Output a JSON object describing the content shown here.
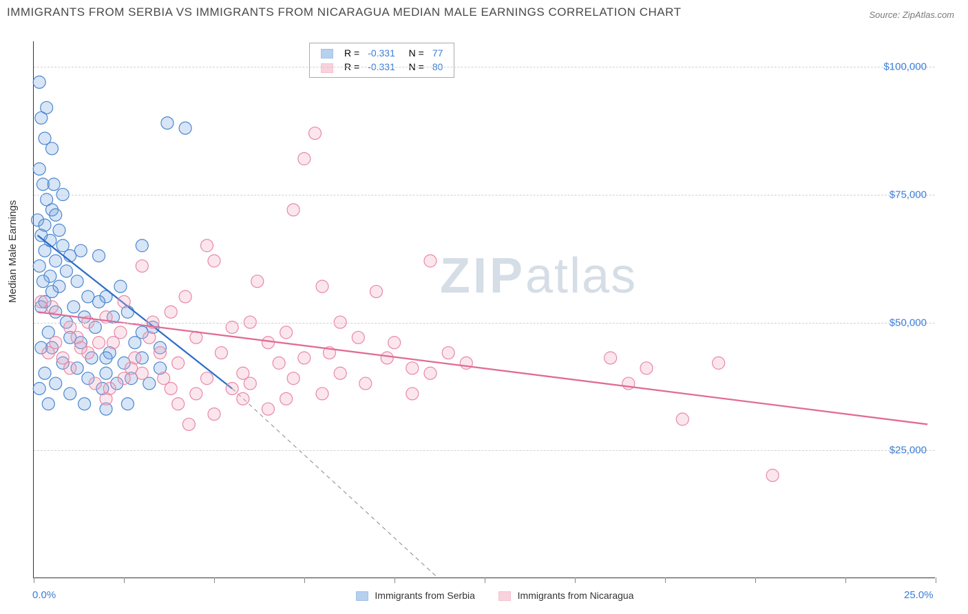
{
  "title": "IMMIGRANTS FROM SERBIA VS IMMIGRANTS FROM NICARAGUA MEDIAN MALE EARNINGS CORRELATION CHART",
  "source": "Source: ZipAtlas.com",
  "ylabel": "Median Male Earnings",
  "watermark_a": "ZIP",
  "watermark_b": "atlas",
  "chart": {
    "type": "scatter-correlation",
    "background_color": "#ffffff",
    "grid_color": "#d0d0d0",
    "axis_color": "#333333",
    "tick_label_color": "#3b7dd8",
    "tick_fontsize": 15,
    "label_fontsize": 15,
    "title_fontsize": 17,
    "xlim": [
      0,
      25
    ],
    "ylim": [
      0,
      105000
    ],
    "y_grid": [
      25000,
      50000,
      75000,
      100000
    ],
    "ytick_labels": [
      "$25,000",
      "$50,000",
      "$75,000",
      "$100,000"
    ],
    "x_ticks": [
      0,
      2.5,
      5,
      7.5,
      10,
      12.5,
      15,
      17.5,
      20,
      22.5,
      25
    ],
    "xtick_labels": {
      "0": "0.0%",
      "25": "25.0%"
    },
    "marker_radius": 9,
    "marker_stroke_width": 1.2,
    "fill_opacity": 0.28,
    "series": [
      {
        "name": "Immigrants from Serbia",
        "color": "#6fa3e0",
        "stroke": "#4a86d0",
        "line_color": "#2e6fc7",
        "line_width": 2.3,
        "trend": {
          "x1": 0.1,
          "y1": 67000,
          "x2": 5.5,
          "y2": 37000
        },
        "trend_dash": {
          "x1": 5.5,
          "y1": 37000,
          "x2": 11.2,
          "y2": 0
        },
        "R": "-0.331",
        "N": "77",
        "points": [
          [
            0.15,
            97000
          ],
          [
            0.35,
            92000
          ],
          [
            0.2,
            90000
          ],
          [
            0.55,
            77000
          ],
          [
            0.25,
            77000
          ],
          [
            0.35,
            74000
          ],
          [
            0.5,
            72000
          ],
          [
            0.6,
            71000
          ],
          [
            0.1,
            70000
          ],
          [
            0.3,
            69000
          ],
          [
            0.7,
            68000
          ],
          [
            0.2,
            67000
          ],
          [
            0.45,
            66000
          ],
          [
            0.8,
            65000
          ],
          [
            0.3,
            64000
          ],
          [
            1.3,
            64000
          ],
          [
            1.0,
            63000
          ],
          [
            0.6,
            62000
          ],
          [
            0.15,
            61000
          ],
          [
            0.9,
            60000
          ],
          [
            0.45,
            59000
          ],
          [
            0.25,
            58000
          ],
          [
            1.2,
            58000
          ],
          [
            0.7,
            57000
          ],
          [
            0.5,
            56000
          ],
          [
            1.5,
            55000
          ],
          [
            0.3,
            54000
          ],
          [
            2.0,
            55000
          ],
          [
            2.4,
            57000
          ],
          [
            1.8,
            54000
          ],
          [
            1.1,
            53000
          ],
          [
            0.2,
            53000
          ],
          [
            0.6,
            52000
          ],
          [
            1.4,
            51000
          ],
          [
            0.9,
            50000
          ],
          [
            2.2,
            51000
          ],
          [
            2.6,
            52000
          ],
          [
            1.7,
            49000
          ],
          [
            0.4,
            48000
          ],
          [
            1.0,
            47000
          ],
          [
            3.0,
            48000
          ],
          [
            3.3,
            49000
          ],
          [
            2.8,
            46000
          ],
          [
            1.3,
            46000
          ],
          [
            0.5,
            45000
          ],
          [
            2.1,
            44000
          ],
          [
            3.5,
            45000
          ],
          [
            1.6,
            43000
          ],
          [
            0.8,
            42000
          ],
          [
            2.5,
            42000
          ],
          [
            3.0,
            43000
          ],
          [
            1.2,
            41000
          ],
          [
            3.5,
            41000
          ],
          [
            2.0,
            40000
          ],
          [
            0.3,
            40000
          ],
          [
            1.5,
            39000
          ],
          [
            2.7,
            39000
          ],
          [
            0.6,
            38000
          ],
          [
            2.3,
            38000
          ],
          [
            3.2,
            38000
          ],
          [
            1.9,
            37000
          ],
          [
            0.15,
            37000
          ],
          [
            1.0,
            36000
          ],
          [
            2.6,
            34000
          ],
          [
            1.4,
            34000
          ],
          [
            0.4,
            34000
          ],
          [
            2.0,
            33000
          ],
          [
            3.7,
            89000
          ],
          [
            3.0,
            65000
          ],
          [
            1.8,
            63000
          ],
          [
            2.0,
            43000
          ],
          [
            4.2,
            88000
          ],
          [
            0.8,
            75000
          ],
          [
            0.15,
            80000
          ],
          [
            0.5,
            84000
          ],
          [
            0.3,
            86000
          ],
          [
            0.2,
            45000
          ]
        ]
      },
      {
        "name": "Immigrants from Nicaragua",
        "color": "#f2a7bd",
        "stroke": "#e887a5",
        "line_color": "#e26b95",
        "line_width": 2.3,
        "trend": {
          "x1": 0.1,
          "y1": 52000,
          "x2": 24.8,
          "y2": 30000
        },
        "R": "-0.331",
        "N": "80",
        "points": [
          [
            7.8,
            87000
          ],
          [
            7.5,
            82000
          ],
          [
            7.2,
            72000
          ],
          [
            4.8,
            65000
          ],
          [
            5.0,
            62000
          ],
          [
            11.0,
            62000
          ],
          [
            3.0,
            61000
          ],
          [
            6.2,
            58000
          ],
          [
            8.0,
            57000
          ],
          [
            9.5,
            56000
          ],
          [
            4.2,
            55000
          ],
          [
            2.5,
            54000
          ],
          [
            8.5,
            50000
          ],
          [
            6.0,
            50000
          ],
          [
            3.8,
            52000
          ],
          [
            2.0,
            51000
          ],
          [
            1.5,
            50000
          ],
          [
            1.0,
            49000
          ],
          [
            0.5,
            53000
          ],
          [
            0.2,
            54000
          ],
          [
            5.5,
            49000
          ],
          [
            7.0,
            48000
          ],
          [
            4.5,
            47000
          ],
          [
            3.2,
            47000
          ],
          [
            2.2,
            46000
          ],
          [
            1.8,
            46000
          ],
          [
            1.2,
            47000
          ],
          [
            6.5,
            46000
          ],
          [
            9.0,
            47000
          ],
          [
            10.0,
            46000
          ],
          [
            8.2,
            44000
          ],
          [
            11.5,
            44000
          ],
          [
            5.2,
            44000
          ],
          [
            3.5,
            44000
          ],
          [
            2.8,
            43000
          ],
          [
            7.5,
            43000
          ],
          [
            9.8,
            43000
          ],
          [
            4.0,
            42000
          ],
          [
            6.8,
            42000
          ],
          [
            10.5,
            41000
          ],
          [
            12.0,
            42000
          ],
          [
            5.8,
            40000
          ],
          [
            3.0,
            40000
          ],
          [
            8.5,
            40000
          ],
          [
            11.0,
            40000
          ],
          [
            4.8,
            39000
          ],
          [
            7.2,
            39000
          ],
          [
            2.5,
            39000
          ],
          [
            6.0,
            38000
          ],
          [
            9.2,
            38000
          ],
          [
            5.5,
            37000
          ],
          [
            3.8,
            37000
          ],
          [
            8.0,
            36000
          ],
          [
            10.5,
            36000
          ],
          [
            4.5,
            36000
          ],
          [
            7.0,
            35000
          ],
          [
            2.0,
            35000
          ],
          [
            5.8,
            35000
          ],
          [
            4.0,
            34000
          ],
          [
            6.5,
            33000
          ],
          [
            5.0,
            32000
          ],
          [
            4.3,
            30000
          ],
          [
            16.0,
            43000
          ],
          [
            17.0,
            41000
          ],
          [
            16.5,
            38000
          ],
          [
            19.0,
            42000
          ],
          [
            18.0,
            31000
          ],
          [
            20.5,
            20000
          ],
          [
            1.5,
            44000
          ],
          [
            0.8,
            43000
          ],
          [
            1.0,
            41000
          ],
          [
            0.4,
            44000
          ],
          [
            0.6,
            46000
          ],
          [
            1.3,
            45000
          ],
          [
            2.4,
            48000
          ],
          [
            3.3,
            50000
          ],
          [
            2.7,
            41000
          ],
          [
            3.6,
            39000
          ],
          [
            1.7,
            38000
          ],
          [
            2.1,
            37000
          ]
        ]
      }
    ],
    "legend_top": {
      "bg": "#ffffff",
      "border": "#aaaaaa",
      "text_color": "#555555",
      "value_color": "#3b7dd8"
    }
  }
}
